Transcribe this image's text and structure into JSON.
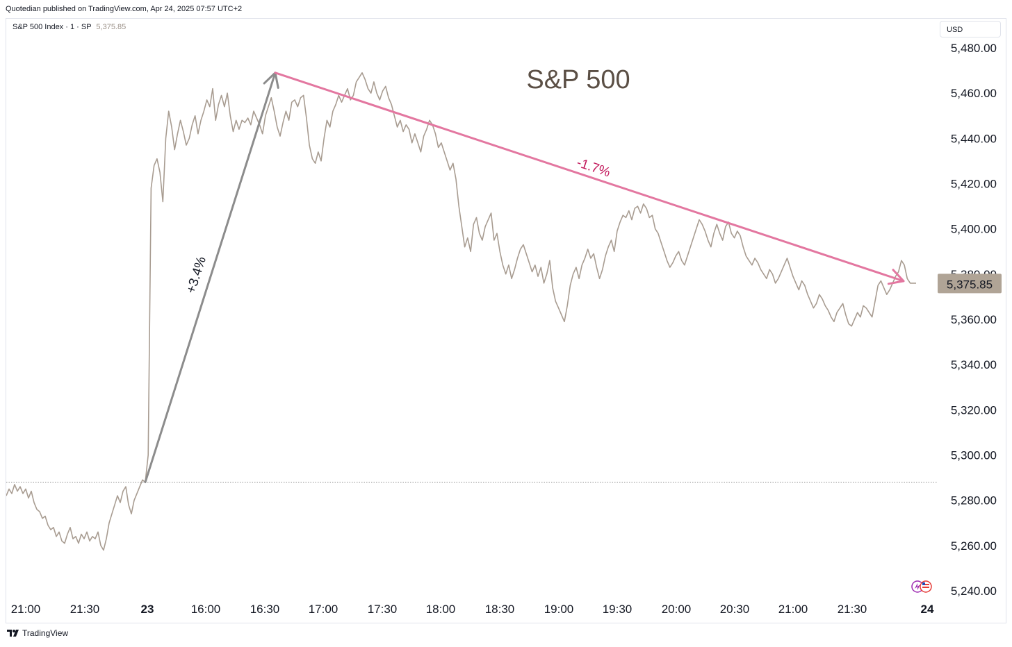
{
  "header": {
    "published_line": "Quotedian published on TradingView.com, Apr 24, 2025 07:57 UTC+2"
  },
  "symbol": {
    "label": "S&P 500 Index · 1 · SP",
    "last": "5,375.85"
  },
  "currency_button": "USD",
  "footer": {
    "brand": "TradingView",
    "logo_icon": "tradingview-logo-icon"
  },
  "corner_icon": "us-flag-badge-icon",
  "colors": {
    "price_line": "#a89c91",
    "up_arrow": "#8c8c8c",
    "down_arrow": "#e377a0",
    "down_label": "#c2185b",
    "title": "#5b4f45",
    "price_badge": "#b0a496",
    "dotted_line": "#8a8a8a"
  },
  "chart_data": {
    "type": "line",
    "title": "S&P 500",
    "xlabel": "",
    "ylabel": "",
    "x_tick_labels": [
      "21:00",
      "21:30",
      "23",
      "16:00",
      "16:30",
      "17:00",
      "17:30",
      "18:00",
      "18:30",
      "19:00",
      "19:30",
      "20:00",
      "20:30",
      "21:00",
      "21:30",
      "24"
    ],
    "y_tick_labels": [
      "5,480.00",
      "5,460.00",
      "5,440.00",
      "5,420.00",
      "5,400.00",
      "5,380.00",
      "5,360.00",
      "5,340.00",
      "5,320.00",
      "5,300.00",
      "5,280.00",
      "5,260.00",
      "5,240.00"
    ],
    "ylim": [
      5240,
      5480
    ],
    "grid": false,
    "previous_close": 5288,
    "last_price": 5375.85,
    "last_price_label": "5,375.85",
    "series": [
      {
        "values": [
          5282,
          5285,
          5283,
          5287,
          5284,
          5286,
          5283,
          5285,
          5281,
          5284,
          5279,
          5276,
          5275,
          5272,
          5273,
          5269,
          5267,
          5268,
          5264,
          5266,
          5262,
          5261,
          5265,
          5268,
          5263,
          5264,
          5261,
          5265,
          5263,
          5266,
          5262,
          5264,
          5263,
          5266,
          5260,
          5258,
          5263,
          5270,
          5274,
          5278,
          5282,
          5279,
          5284,
          5286,
          5278,
          5274,
          5280,
          5283,
          5286,
          5289,
          5288,
          5300,
          5418,
          5428,
          5431,
          5425,
          5412,
          5440,
          5452,
          5445,
          5435,
          5442,
          5448,
          5443,
          5437,
          5440,
          5446,
          5450,
          5442,
          5448,
          5452,
          5457,
          5454,
          5462,
          5448,
          5455,
          5459,
          5454,
          5460,
          5450,
          5443,
          5448,
          5444,
          5448,
          5447,
          5449,
          5446,
          5452,
          5449,
          5446,
          5442,
          5450,
          5454,
          5458,
          5452,
          5445,
          5441,
          5447,
          5452,
          5448,
          5456,
          5457,
          5454,
          5458,
          5459,
          5449,
          5437,
          5431,
          5429,
          5434,
          5430,
          5440,
          5448,
          5445,
          5452,
          5455,
          5459,
          5456,
          5459,
          5462,
          5457,
          5459,
          5465,
          5467,
          5469,
          5466,
          5462,
          5460,
          5465,
          5460,
          5457,
          5461,
          5463,
          5458,
          5455,
          5450,
          5445,
          5448,
          5443,
          5446,
          5444,
          5438,
          5442,
          5438,
          5434,
          5441,
          5444,
          5448,
          5446,
          5442,
          5436,
          5438,
          5434,
          5430,
          5426,
          5429,
          5422,
          5410,
          5401,
          5392,
          5396,
          5390,
          5402,
          5405,
          5398,
          5395,
          5401,
          5404,
          5407,
          5395,
          5398,
          5390,
          5384,
          5380,
          5384,
          5378,
          5382,
          5387,
          5391,
          5393,
          5389,
          5385,
          5381,
          5384,
          5379,
          5383,
          5376,
          5380,
          5386,
          5374,
          5368,
          5365,
          5362,
          5359,
          5366,
          5375,
          5380,
          5383,
          5378,
          5384,
          5387,
          5391,
          5387,
          5389,
          5383,
          5378,
          5382,
          5388,
          5392,
          5395,
          5390,
          5399,
          5403,
          5406,
          5405,
          5408,
          5404,
          5409,
          5410,
          5407,
          5411,
          5409,
          5405,
          5406,
          5400,
          5398,
          5394,
          5390,
          5386,
          5383,
          5385,
          5388,
          5390,
          5386,
          5384,
          5388,
          5392,
          5396,
          5400,
          5404,
          5402,
          5399,
          5395,
          5392,
          5398,
          5402,
          5398,
          5395,
          5401,
          5403,
          5398,
          5396,
          5399,
          5397,
          5392,
          5388,
          5386,
          5384,
          5387,
          5385,
          5382,
          5380,
          5378,
          5382,
          5380,
          5376,
          5378,
          5381,
          5384,
          5387,
          5383,
          5379,
          5376,
          5373,
          5377,
          5375,
          5371,
          5368,
          5365,
          5367,
          5371,
          5369,
          5366,
          5364,
          5361,
          5359,
          5363,
          5365,
          5367,
          5362,
          5358,
          5357,
          5360,
          5363,
          5361,
          5366,
          5365,
          5363,
          5361,
          5368,
          5375,
          5377,
          5374,
          5371,
          5373,
          5376,
          5379,
          5381,
          5386,
          5384,
          5378,
          5376,
          5376,
          5376
        ]
      }
    ],
    "annotations": [
      {
        "label": "+3.4%",
        "from": [
          5288,
          "23"
        ],
        "to": [
          5469,
          "16:39"
        ]
      },
      {
        "label": "-1.7%",
        "from": [
          5469,
          "16:39"
        ],
        "to": [
          5376,
          "21:53"
        ]
      }
    ]
  }
}
